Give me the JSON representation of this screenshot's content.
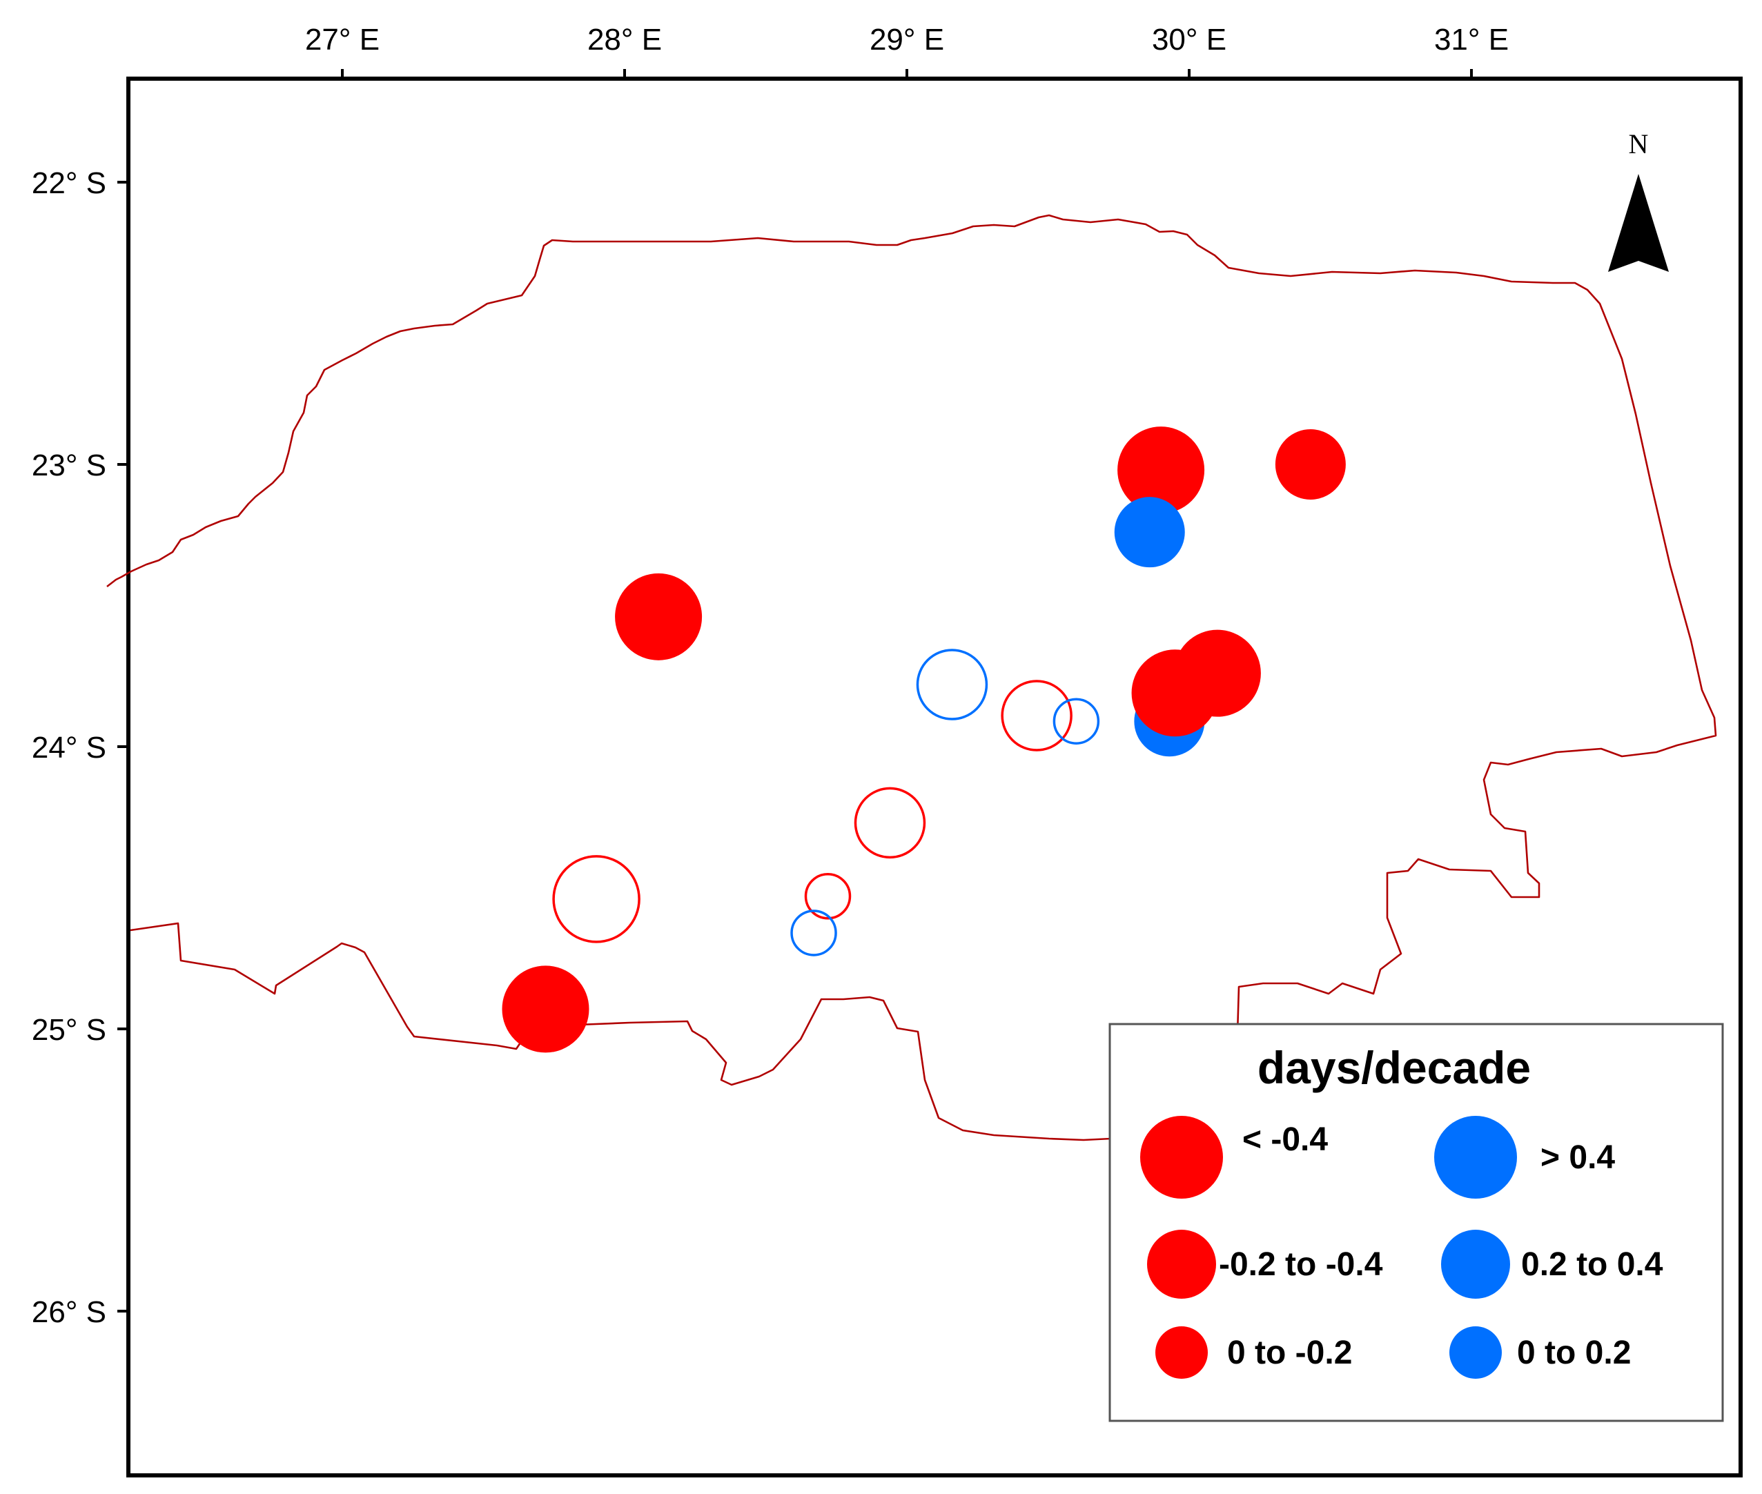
{
  "map": {
    "lon_ticks": [
      {
        "value": 27,
        "label": "27° E"
      },
      {
        "value": 28,
        "label": "28° E"
      },
      {
        "value": 29,
        "label": "29° E"
      },
      {
        "value": 30,
        "label": "30° E"
      },
      {
        "value": 31,
        "label": "31° E"
      }
    ],
    "lat_ticks": [
      {
        "value": -22,
        "label": "22° S"
      },
      {
        "value": -23,
        "label": "23° S"
      },
      {
        "value": -24,
        "label": "24° S"
      },
      {
        "value": -25,
        "label": "25° S"
      },
      {
        "value": -26,
        "label": "26° S"
      }
    ],
    "north_label": "N",
    "colors": {
      "negative": "#ff0000",
      "positive": "#0070ff",
      "boundary": "#b00000",
      "frame": "#000000"
    }
  },
  "legend": {
    "title": "days/decade",
    "items": [
      {
        "label": "< -0.4",
        "sign": "negative",
        "size": "large"
      },
      {
        "label": "> 0.4",
        "sign": "positive",
        "size": "large"
      },
      {
        "label": "-0.2 to -0.4",
        "sign": "negative",
        "size": "medium"
      },
      {
        "label": "0.2 to 0.4",
        "sign": "positive",
        "size": "medium"
      },
      {
        "label": "0 to -0.2",
        "sign": "negative",
        "size": "small"
      },
      {
        "label": "0 to 0.2",
        "sign": "positive",
        "size": "small"
      }
    ]
  },
  "stations": [
    {
      "lon": 29.9,
      "lat": -23.02,
      "sign": "negative",
      "magnitude": "large",
      "significant": true
    },
    {
      "lon": 30.43,
      "lat": -23.0,
      "sign": "negative",
      "magnitude": "medium",
      "significant": true
    },
    {
      "lon": 29.86,
      "lat": -23.24,
      "sign": "positive",
      "magnitude": "medium",
      "significant": true
    },
    {
      "lon": 28.12,
      "lat": -23.54,
      "sign": "negative",
      "magnitude": "large",
      "significant": true
    },
    {
      "lon": 30.1,
      "lat": -23.74,
      "sign": "negative",
      "magnitude": "large",
      "significant": true
    },
    {
      "lon": 29.93,
      "lat": -23.91,
      "sign": "positive",
      "magnitude": "medium",
      "significant": true
    },
    {
      "lon": 29.95,
      "lat": -23.81,
      "sign": "negative",
      "magnitude": "large",
      "significant": true
    },
    {
      "lon": 29.16,
      "lat": -23.78,
      "sign": "positive",
      "magnitude": "medium",
      "significant": false
    },
    {
      "lon": 29.46,
      "lat": -23.89,
      "sign": "negative",
      "magnitude": "medium",
      "significant": false
    },
    {
      "lon": 29.6,
      "lat": -23.91,
      "sign": "positive",
      "magnitude": "small",
      "significant": false
    },
    {
      "lon": 28.94,
      "lat": -24.27,
      "sign": "negative",
      "magnitude": "medium",
      "significant": false
    },
    {
      "lon": 27.9,
      "lat": -24.54,
      "sign": "negative",
      "magnitude": "large",
      "significant": false
    },
    {
      "lon": 28.72,
      "lat": -24.53,
      "sign": "negative",
      "magnitude": "small",
      "significant": false
    },
    {
      "lon": 28.67,
      "lat": -24.66,
      "sign": "positive",
      "magnitude": "small",
      "significant": false
    },
    {
      "lon": 27.72,
      "lat": -24.93,
      "sign": "negative",
      "magnitude": "large",
      "significant": true
    }
  ]
}
